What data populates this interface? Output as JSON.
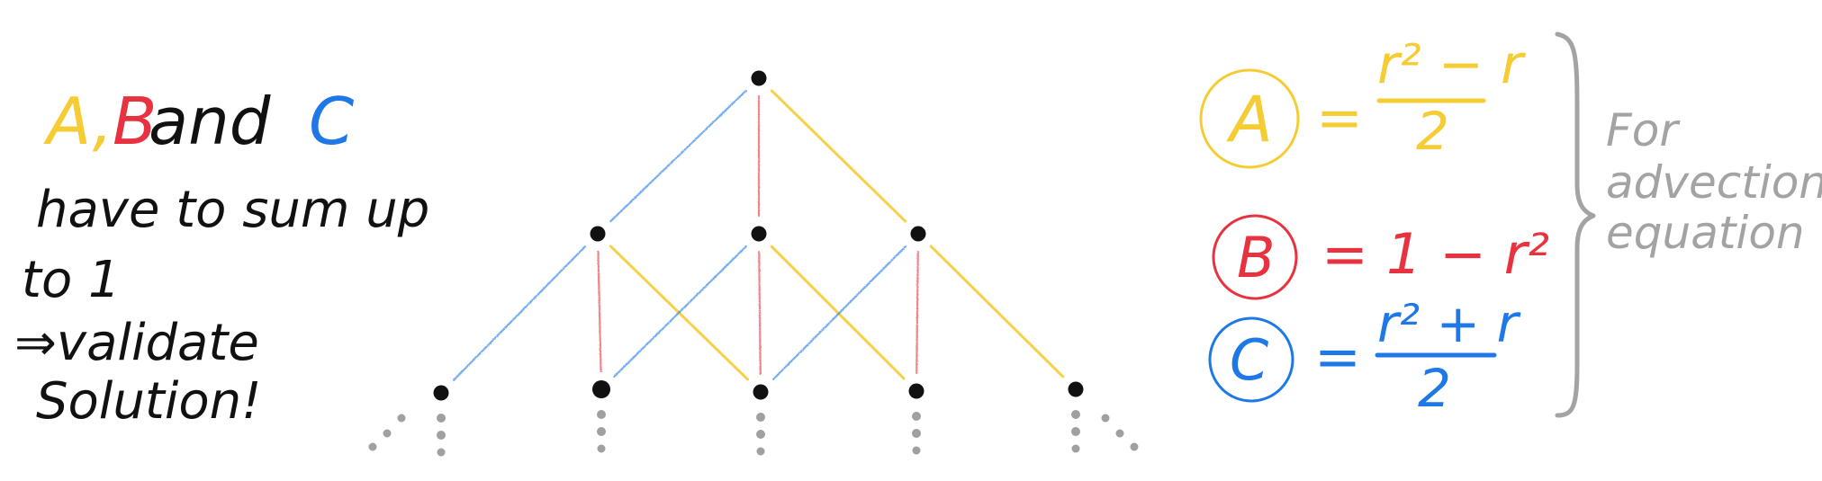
{
  "colors": {
    "A": "#F5CC33",
    "B": "#E8323F",
    "C": "#1E78E6",
    "ink": "#111111",
    "note": "#A3A3A3",
    "dots": "#A0A0A0"
  },
  "left_note": {
    "a": "A,",
    "b": "B",
    "and": " and ",
    "c": "C",
    "line2": "have to sum up",
    "line3": "to 1",
    "line4": "⇒validate",
    "line5": "Solution!"
  },
  "formulas": {
    "A": {
      "letter": "A",
      "eq": "=",
      "numerator": "r² − r",
      "denominator": "2"
    },
    "B": {
      "letter": "B",
      "eq": "=",
      "expr": "1 − r²"
    },
    "C": {
      "letter": "C",
      "eq": "=",
      "numerator": "r² + r",
      "denominator": "2"
    }
  },
  "bracket_note": [
    "For",
    "advection",
    "equation"
  ],
  "tree": {
    "levels": 3,
    "edge_types": [
      "A",
      "B",
      "C"
    ]
  }
}
